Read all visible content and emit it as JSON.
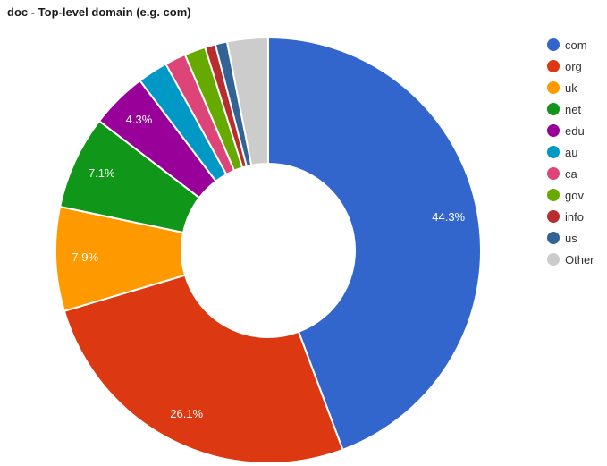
{
  "title": "doc - Top-level domain (e.g. com)",
  "chart_data": {
    "type": "pie",
    "subtype": "donut",
    "title": "doc - Top-level domain (e.g. com)",
    "legend_position": "right",
    "label_color": "#ffffff",
    "background_color": "#ffffff",
    "categories": [
      "com",
      "org",
      "uk",
      "net",
      "edu",
      "au",
      "ca",
      "gov",
      "info",
      "us",
      "Other"
    ],
    "values": [
      44.3,
      26.1,
      7.9,
      7.1,
      4.3,
      2.3,
      1.6,
      1.6,
      0.8,
      0.9,
      3.1
    ],
    "display_labels": [
      "44.3%",
      "26.1%",
      "7.9%",
      "7.1%",
      "4.3%",
      "",
      "",
      "",
      "",
      "",
      ""
    ],
    "colors": [
      "#3366CC",
      "#DC3912",
      "#FF9900",
      "#109618",
      "#990099",
      "#0099C6",
      "#DD4477",
      "#66AA00",
      "#B82E2E",
      "#316395",
      "#CCCCCC"
    ]
  }
}
